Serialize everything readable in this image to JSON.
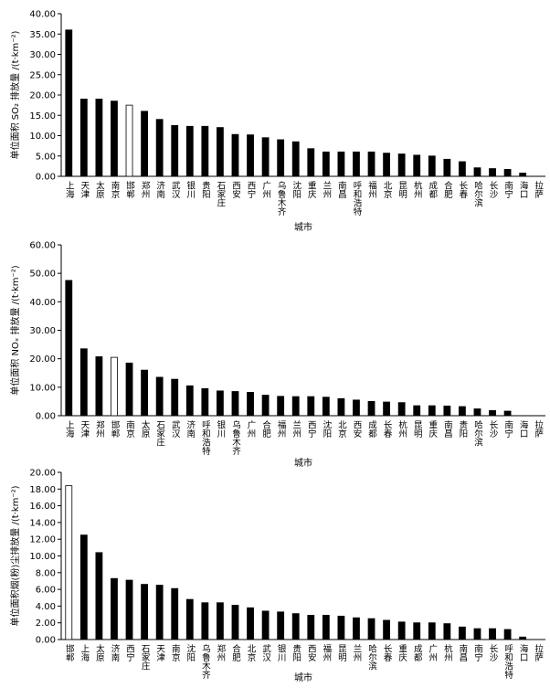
{
  "chart_data": [
    {
      "type": "bar",
      "ylabel": "单位面积 SO₂ 排放量 /(t·km⁻²)",
      "xlabel": "城市",
      "categories": [
        "上海",
        "天津",
        "太原",
        "南京",
        "邯郸",
        "郑州",
        "济南",
        "武汉",
        "银川",
        "贵阳",
        "石家庄",
        "西安",
        "西宁",
        "广州",
        "乌鲁木齐",
        "沈阳",
        "重庆",
        "兰州",
        "南昌",
        "呼和浩特",
        "福州",
        "北京",
        "昆明",
        "杭州",
        "成都",
        "合肥",
        "长春",
        "哈尔滨",
        "长沙",
        "南宁",
        "海口",
        "拉萨"
      ],
      "values": [
        36,
        19,
        19,
        18.5,
        17.5,
        16,
        14,
        12.5,
        12.3,
        12.3,
        12,
        10.3,
        10.2,
        9.5,
        9,
        8.5,
        6.8,
        6,
        6,
        6,
        6,
        5.7,
        5.5,
        5.2,
        5,
        4.2,
        3.6,
        2.1,
        1.9,
        1.7,
        0.8,
        0
      ],
      "colors": [
        "#000",
        "#000",
        "#000",
        "#000",
        "#fff",
        "#000",
        "#000",
        "#000",
        "#000",
        "#000",
        "#000",
        "#000",
        "#000",
        "#000",
        "#000",
        "#000",
        "#000",
        "#000",
        "#000",
        "#000",
        "#000",
        "#000",
        "#000",
        "#000",
        "#000",
        "#000",
        "#000",
        "#000",
        "#000",
        "#000",
        "#000",
        "#000"
      ],
      "edgecolor": "#000",
      "ylim": [
        0,
        40
      ],
      "yticks": [
        {
          "value": 0,
          "label": "0.00"
        },
        {
          "value": 5,
          "label": "5.00"
        },
        {
          "value": 10,
          "label": "10.00"
        },
        {
          "value": 15,
          "label": "15.00"
        },
        {
          "value": 20,
          "label": "20.00"
        },
        {
          "value": 25,
          "label": "25.00"
        },
        {
          "value": 30,
          "label": "30.00"
        },
        {
          "value": 35,
          "label": "35.00"
        },
        {
          "value": 40,
          "label": "40.00"
        }
      ]
    },
    {
      "type": "bar",
      "ylabel": "单位面积 NOₓ 排放量 /(t·km⁻²)",
      "xlabel": "城市",
      "categories": [
        "上海",
        "天津",
        "郑州",
        "邯郸",
        "南京",
        "太原",
        "石家庄",
        "武汉",
        "济南",
        "呼和浩特",
        "银川",
        "乌鲁木齐",
        "广州",
        "合肥",
        "福州",
        "兰州",
        "西宁",
        "沈阳",
        "北京",
        "西安",
        "成都",
        "长春",
        "杭州",
        "昆明",
        "重庆",
        "南昌",
        "贵阳",
        "哈尔滨",
        "长沙",
        "南宁",
        "海口",
        "拉萨"
      ],
      "values": [
        47.5,
        23.5,
        20.7,
        20.5,
        18.5,
        16,
        13.5,
        12.8,
        10.5,
        9.5,
        8.7,
        8.5,
        8.2,
        7.2,
        6.8,
        6.7,
        6.7,
        6.5,
        6,
        5.5,
        5,
        4.8,
        4.6,
        3.5,
        3.5,
        3.4,
        3.2,
        2.4,
        1.8,
        1.6,
        0,
        0
      ],
      "colors": [
        "#000",
        "#000",
        "#000",
        "#fff",
        "#000",
        "#000",
        "#000",
        "#000",
        "#000",
        "#000",
        "#000",
        "#000",
        "#000",
        "#000",
        "#000",
        "#000",
        "#000",
        "#000",
        "#000",
        "#000",
        "#000",
        "#000",
        "#000",
        "#000",
        "#000",
        "#000",
        "#000",
        "#000",
        "#000",
        "#000",
        "#000",
        "#000"
      ],
      "edgecolor": "#000",
      "ylim": [
        0,
        60
      ],
      "yticks": [
        {
          "value": 0,
          "label": "0.00"
        },
        {
          "value": 10,
          "label": "10.00"
        },
        {
          "value": 20,
          "label": "20.00"
        },
        {
          "value": 30,
          "label": "30.00"
        },
        {
          "value": 40,
          "label": "40.00"
        },
        {
          "value": 50,
          "label": "50.00"
        },
        {
          "value": 60,
          "label": "60.00"
        }
      ]
    },
    {
      "type": "bar",
      "ylabel": "单位面积烟(粉)尘排放量 /(t·km⁻²)",
      "xlabel": "城市",
      "categories": [
        "邯郸",
        "上海",
        "太原",
        "济南",
        "西宁",
        "石家庄",
        "天津",
        "南京",
        "沈阳",
        "乌鲁木齐",
        "郑州",
        "合肥",
        "北京",
        "武汉",
        "银川",
        "贵阳",
        "西安",
        "福州",
        "昆明",
        "兰州",
        "哈尔滨",
        "长春",
        "重庆",
        "成都",
        "广州",
        "杭州",
        "南昌",
        "南宁",
        "长沙",
        "呼和浩特",
        "海口",
        "拉萨"
      ],
      "values": [
        18.4,
        12.5,
        10.4,
        7.3,
        7.1,
        6.6,
        6.5,
        6.1,
        4.8,
        4.4,
        4.4,
        4.1,
        3.8,
        3.4,
        3.3,
        3.1,
        2.9,
        2.9,
        2.8,
        2.6,
        2.5,
        2.3,
        2.1,
        2.0,
        2.0,
        1.9,
        1.5,
        1.3,
        1.3,
        1.2,
        0.3,
        0
      ],
      "colors": [
        "#fff",
        "#000",
        "#000",
        "#000",
        "#000",
        "#000",
        "#000",
        "#000",
        "#000",
        "#000",
        "#000",
        "#000",
        "#000",
        "#000",
        "#000",
        "#000",
        "#000",
        "#000",
        "#000",
        "#000",
        "#000",
        "#000",
        "#000",
        "#000",
        "#000",
        "#000",
        "#000",
        "#000",
        "#000",
        "#000",
        "#000",
        "#000"
      ],
      "edgecolor": "#000",
      "ylim": [
        0,
        20
      ],
      "yticks": [
        {
          "value": 0,
          "label": "0.00"
        },
        {
          "value": 2,
          "label": "2.00"
        },
        {
          "value": 4,
          "label": "4.00"
        },
        {
          "value": 6,
          "label": "6.00"
        },
        {
          "value": 8,
          "label": "8.00"
        },
        {
          "value": 10,
          "label": "10.00"
        },
        {
          "value": 12,
          "label": "12.00"
        },
        {
          "value": 14,
          "label": "14.00"
        },
        {
          "value": 16,
          "label": "16.00"
        },
        {
          "value": 18,
          "label": "18.00"
        },
        {
          "value": 20,
          "label": "20.00"
        }
      ]
    }
  ]
}
